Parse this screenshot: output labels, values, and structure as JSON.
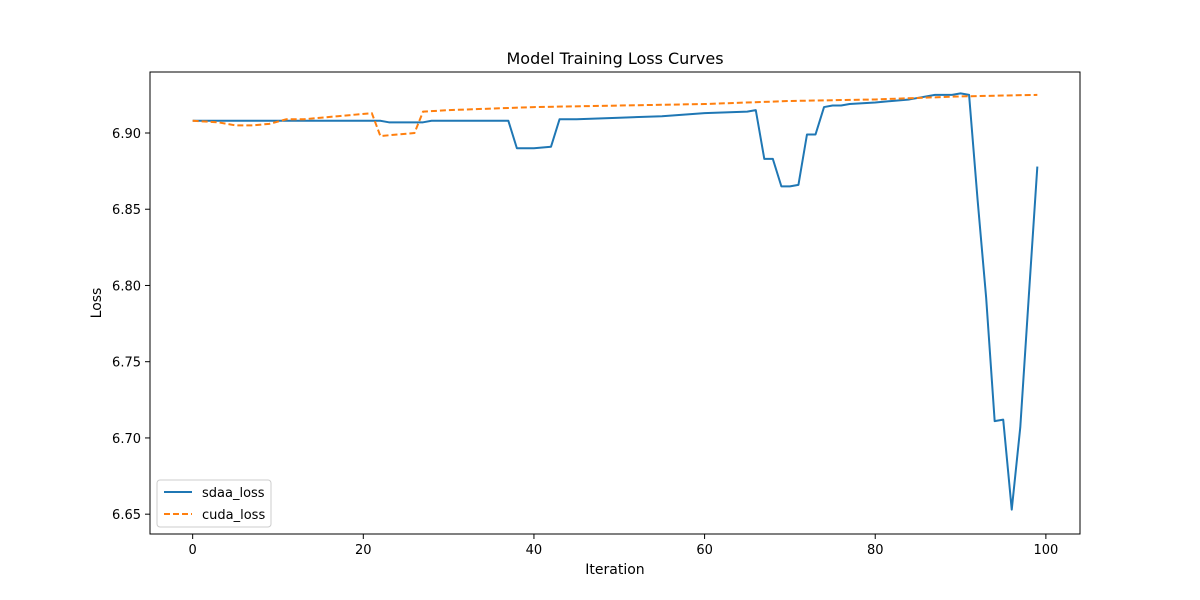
{
  "chart_data": {
    "type": "line",
    "title": "Model Training Loss Curves",
    "xlabel": "Iteration",
    "ylabel": "Loss",
    "xlim": [
      -5,
      104
    ],
    "ylim": [
      6.637,
      6.94
    ],
    "xticks": [
      0,
      20,
      40,
      60,
      80,
      100
    ],
    "yticks": [
      6.65,
      6.7,
      6.75,
      6.8,
      6.85,
      6.9
    ],
    "xtick_labels": [
      "0",
      "20",
      "40",
      "60",
      "80",
      "100"
    ],
    "ytick_labels": [
      "6.65",
      "6.70",
      "6.75",
      "6.80",
      "6.85",
      "6.90"
    ],
    "grid": false,
    "legend_position": "lower-left",
    "series": [
      {
        "name": "sdaa_loss",
        "color": "#1f77b4",
        "linestyle": "solid",
        "x": [
          0,
          5,
          10,
          15,
          20,
          21,
          22,
          23,
          24,
          25,
          26,
          27,
          28,
          30,
          32,
          35,
          37,
          38,
          40,
          42,
          43,
          45,
          50,
          55,
          60,
          65,
          66,
          67,
          68,
          69,
          70,
          71,
          72,
          73,
          74,
          75,
          76,
          77,
          80,
          84,
          87,
          88,
          89,
          90,
          91,
          92,
          93,
          94,
          95,
          96,
          97,
          98,
          99
        ],
        "y": [
          6.908,
          6.908,
          6.908,
          6.908,
          6.908,
          6.908,
          6.908,
          6.907,
          6.907,
          6.907,
          6.907,
          6.907,
          6.908,
          6.908,
          6.908,
          6.908,
          6.908,
          6.89,
          6.89,
          6.891,
          6.909,
          6.909,
          6.91,
          6.911,
          6.913,
          6.914,
          6.915,
          6.883,
          6.883,
          6.865,
          6.865,
          6.866,
          6.899,
          6.899,
          6.917,
          6.918,
          6.918,
          6.919,
          6.92,
          6.922,
          6.925,
          6.925,
          6.925,
          6.926,
          6.925,
          6.856,
          6.792,
          6.711,
          6.712,
          6.653,
          6.707,
          6.793,
          6.878
        ]
      },
      {
        "name": "cuda_loss",
        "color": "#ff7f0e",
        "linestyle": "dashed",
        "x": [
          0,
          3,
          5,
          7,
          9,
          11,
          13,
          15,
          17,
          19,
          21,
          22,
          24,
          26,
          27,
          30,
          40,
          50,
          60,
          70,
          80,
          90,
          99
        ],
        "y": [
          6.908,
          6.907,
          6.905,
          6.905,
          6.906,
          6.909,
          6.909,
          6.91,
          6.911,
          6.912,
          6.913,
          6.898,
          6.899,
          6.9,
          6.914,
          6.915,
          6.917,
          6.918,
          6.919,
          6.921,
          6.922,
          6.924,
          6.925
        ]
      }
    ]
  }
}
